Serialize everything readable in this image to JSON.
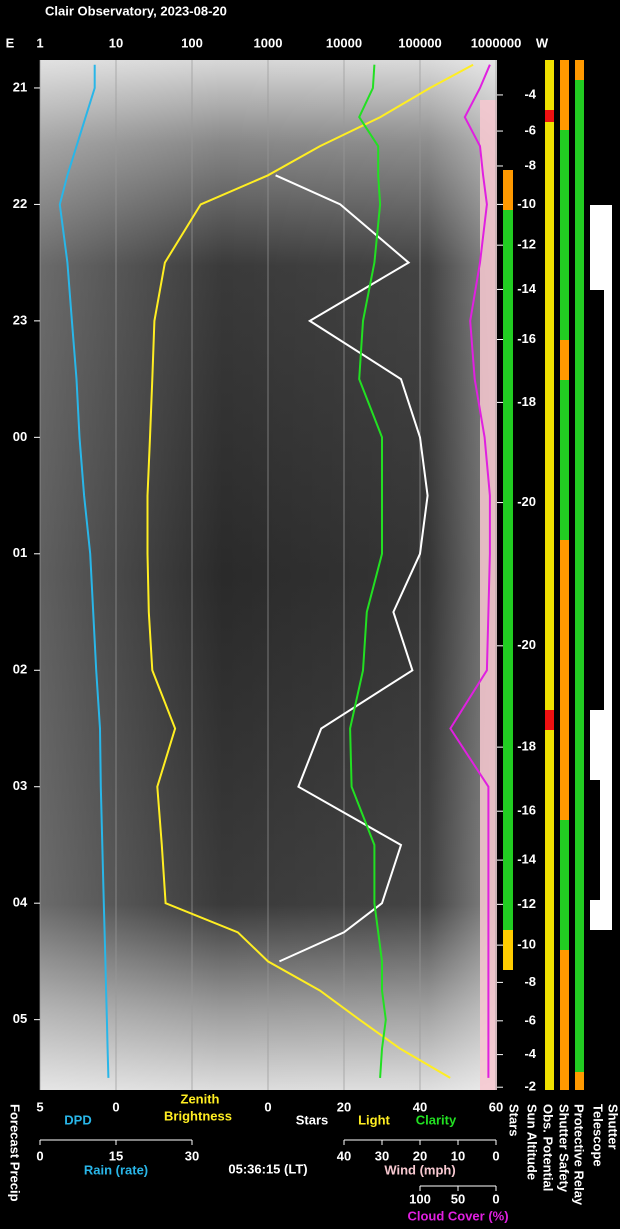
{
  "chart_data": {
    "type": "line",
    "title": "Clair Observatory, 2023-08-20",
    "top_axis": {
      "left": "E",
      "right": "W",
      "xlim": [
        1,
        1000000
      ],
      "log": true,
      "xticks": [
        1,
        10,
        100,
        1000,
        10000,
        100000,
        1000000
      ],
      "grid": true
    },
    "ylim": [
      20.76,
      29.604
    ],
    "yticks": [
      21,
      22,
      23,
      {
        "value": 24,
        "label": "00"
      },
      {
        "value": 25,
        "label": "01"
      },
      {
        "value": 26,
        "label": "02"
      },
      {
        "value": 27,
        "label": "03"
      },
      {
        "value": 28,
        "label": "04"
      },
      {
        "value": 29,
        "label": "05"
      }
    ],
    "sun_altitude": {
      "name": "Sun Altitude",
      "values": [
        -4,
        -6,
        -8,
        -10,
        -12,
        -14,
        -16,
        -18,
        -20,
        -20,
        -18,
        -16,
        -14,
        -12,
        -10,
        -8,
        -6,
        -4,
        -2
      ],
      "times": [
        21.06,
        21.37,
        21.67,
        22.0,
        22.35,
        22.73,
        23.16,
        23.7,
        24.56,
        25.79,
        26.66,
        27.21,
        27.63,
        28.01,
        28.36,
        28.68,
        29.01,
        29.3,
        29.58
      ]
    },
    "x": [
      20.8,
      21.0,
      21.25,
      21.5,
      21.75,
      22,
      22.5,
      23,
      23.5,
      24,
      24.5,
      25,
      25.5,
      26,
      26.5,
      27,
      27.5,
      28,
      28.25,
      28.5,
      28.75,
      29,
      29.25,
      29.5
    ],
    "series": [
      {
        "name": "DPD",
        "color": "#29b6e8",
        "axis": "dpd",
        "values": [
          1.4,
          1.4,
          2.0,
          2.6,
          3.2,
          3.7,
          3.2,
          2.9,
          2.6,
          2.4,
          2.1,
          1.7,
          1.5,
          1.3,
          1.05,
          1.0,
          0.9,
          0.8,
          0.75,
          0.7,
          0.65,
          0.6,
          0.55,
          0.5
        ]
      },
      {
        "name": "Zenith Brightness",
        "color": "#ffee22",
        "axis": "top",
        "values": [
          500000,
          135000,
          30000,
          4800,
          1000,
          130,
          44,
          32,
          30,
          28,
          26,
          26,
          27,
          30,
          60,
          35,
          40,
          45,
          400,
          1000,
          4800,
          16000,
          55000,
          250000
        ]
      },
      {
        "name": "Stars",
        "color": "#ffffff",
        "axis": "stars",
        "values": [
          null,
          null,
          null,
          null,
          2,
          19,
          37,
          11,
          35,
          40,
          42,
          40,
          33,
          38,
          14,
          8,
          35,
          30,
          20,
          3,
          null,
          null,
          null,
          null
        ]
      },
      {
        "name": "Clarity",
        "color": "#22e022",
        "axis": "stars",
        "values": [
          28,
          27.6,
          24,
          29,
          29,
          29.5,
          28,
          25,
          24,
          30,
          30,
          30,
          26,
          25,
          21.6,
          22,
          28,
          28,
          29,
          30,
          30,
          31,
          30,
          29.5
        ]
      },
      {
        "name": "Cloud Cover (%)",
        "color": "#e020e0",
        "axis": "cloud",
        "values": [
          8,
          21,
          41,
          21,
          17,
          12,
          21,
          34,
          28,
          15,
          8,
          8,
          10,
          12,
          60,
          10,
          10,
          10,
          10,
          10,
          10,
          10,
          10,
          10
        ]
      }
    ],
    "dpd_axis": {
      "label": "DPD",
      "lim": [
        5,
        0
      ],
      "ticks": [
        5,
        0
      ]
    },
    "zenith_label": [
      "Zenith",
      "Brightness"
    ],
    "stars_axis": {
      "lim": [
        0,
        60
      ],
      "ticks": [
        0,
        20,
        40,
        60
      ],
      "labels": [
        "Stars",
        "Light",
        "Clarity"
      ]
    },
    "rain_axis": {
      "label": "Rain (rate)",
      "lim": [
        0,
        30
      ],
      "ticks": [
        0,
        15,
        30
      ]
    },
    "time": "05:36:15 (LT)",
    "wind_axis": {
      "label": "Wind (mph)",
      "lim": [
        40,
        0
      ],
      "ticks": [
        40,
        30,
        20,
        10,
        0
      ]
    },
    "cloud_axis": {
      "label": "Cloud Cover (%)",
      "lim": [
        100,
        0
      ],
      "ticks": [
        100,
        50,
        0
      ]
    },
    "side_labels": [
      "Forecast Precip",
      "Stars",
      "Sun Altitude",
      "Obs. Potential",
      "Shutter Safety",
      "Protective Relay",
      "Telescope",
      "Shutter"
    ]
  }
}
